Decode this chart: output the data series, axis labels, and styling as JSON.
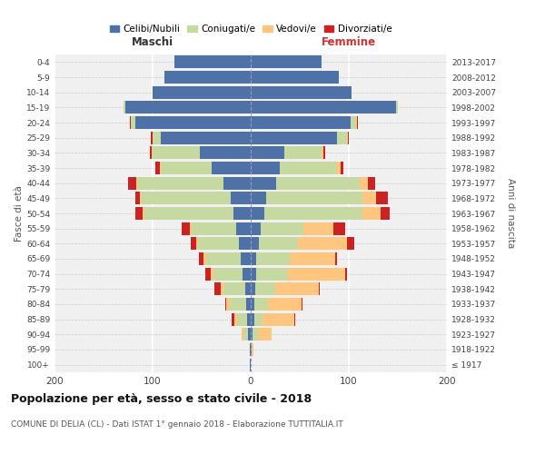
{
  "age_groups": [
    "100+",
    "95-99",
    "90-94",
    "85-89",
    "80-84",
    "75-79",
    "70-74",
    "65-69",
    "60-64",
    "55-59",
    "50-54",
    "45-49",
    "40-44",
    "35-39",
    "30-34",
    "25-29",
    "20-24",
    "15-19",
    "10-14",
    "5-9",
    "0-4"
  ],
  "birth_years": [
    "≤ 1917",
    "1918-1922",
    "1923-1927",
    "1928-1932",
    "1933-1937",
    "1938-1942",
    "1943-1947",
    "1948-1952",
    "1953-1957",
    "1958-1962",
    "1963-1967",
    "1968-1972",
    "1973-1977",
    "1978-1982",
    "1983-1987",
    "1988-1992",
    "1993-1997",
    "1998-2002",
    "2003-2007",
    "2008-2012",
    "2013-2017"
  ],
  "male": {
    "celibi": [
      1,
      1,
      3,
      4,
      5,
      6,
      8,
      10,
      12,
      15,
      18,
      20,
      28,
      40,
      52,
      92,
      118,
      128,
      100,
      88,
      78
    ],
    "coniugati": [
      0,
      0,
      4,
      10,
      16,
      22,
      30,
      35,
      42,
      45,
      90,
      92,
      88,
      52,
      48,
      8,
      4,
      2,
      0,
      0,
      0
    ],
    "vedovi": [
      0,
      0,
      2,
      3,
      4,
      3,
      3,
      3,
      2,
      2,
      2,
      1,
      1,
      1,
      1,
      0,
      0,
      0,
      0,
      0,
      0
    ],
    "divorziati": [
      0,
      0,
      0,
      2,
      1,
      6,
      5,
      5,
      5,
      8,
      8,
      5,
      8,
      4,
      2,
      2,
      1,
      0,
      0,
      0,
      0
    ]
  },
  "female": {
    "nubili": [
      0,
      1,
      2,
      4,
      4,
      5,
      6,
      6,
      8,
      10,
      14,
      16,
      26,
      30,
      34,
      88,
      102,
      148,
      103,
      90,
      72
    ],
    "coniugate": [
      0,
      0,
      5,
      8,
      14,
      20,
      32,
      34,
      40,
      44,
      100,
      98,
      85,
      58,
      38,
      10,
      5,
      2,
      0,
      0,
      0
    ],
    "vedove": [
      0,
      2,
      14,
      32,
      34,
      44,
      58,
      46,
      50,
      30,
      18,
      14,
      8,
      4,
      2,
      1,
      1,
      0,
      0,
      0,
      0
    ],
    "divorziate": [
      0,
      0,
      0,
      1,
      1,
      1,
      2,
      2,
      8,
      12,
      10,
      12,
      8,
      2,
      2,
      1,
      1,
      0,
      0,
      0,
      0
    ]
  },
  "colors": {
    "celibi": "#4e72a8",
    "coniugati": "#c5d9a0",
    "vedovi": "#ffc67f",
    "divorziati": "#cc2222"
  },
  "title": "Popolazione per età, sesso e stato civile - 2018",
  "subtitle": "COMUNE DI DELIA (CL) - Dati ISTAT 1° gennaio 2018 - Elaborazione TUTTITALIA.IT",
  "xlabel_left": "Maschi",
  "xlabel_right": "Femmine",
  "ylabel_left": "Fasce di età",
  "ylabel_right": "Anni di nascita",
  "xlim": 200,
  "legend_labels": [
    "Celibi/Nubili",
    "Coniugati/e",
    "Vedovi/e",
    "Divorziati/e"
  ],
  "bg_color": "#f0f0f0",
  "bar_height": 0.85
}
